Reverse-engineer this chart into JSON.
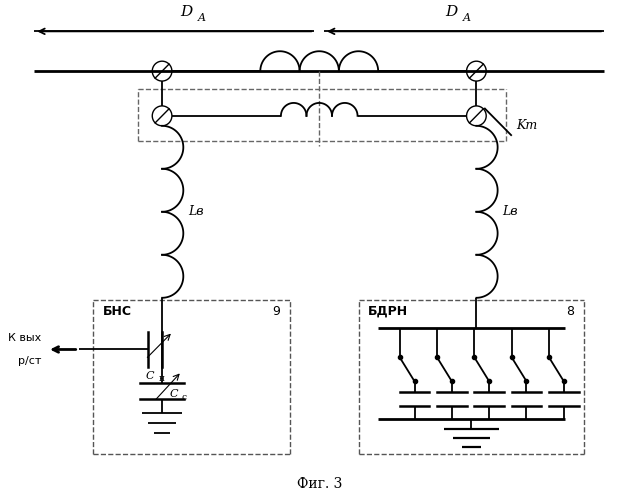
{
  "title": "Фиг. 3",
  "background_color": "#ffffff",
  "figsize": [
    6.31,
    5.0
  ],
  "dpi": 100,
  "label_DA": "D",
  "label_DA_sub": "A",
  "label_Kt": "Kт",
  "label_Lv": "Lв",
  "label_BNS": "БНС",
  "label_BDRN": "БДРН",
  "label_9": "9",
  "label_8": "8",
  "label_Ch": "Cн",
  "label_Cs": "Cс",
  "label_kvyx_1": "К вых",
  "label_kvyx_2": "р/ст"
}
